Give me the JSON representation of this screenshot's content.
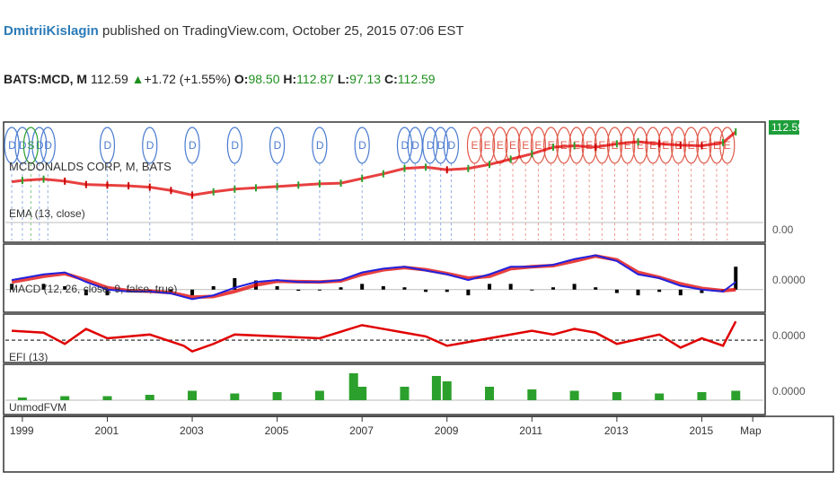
{
  "header": {
    "author": "DmitriiKislagin",
    "published": "published on TradingView.com, October 25, 2015 07:06 EST",
    "symbol": "BATS:MCD, M",
    "last": "112.59",
    "change": "+1.72 (+1.55%)",
    "o_label": "O:",
    "o_value": "98.50",
    "h_label": "H:",
    "h_value": "112.87",
    "l_label": "L:",
    "l_value": "97.13",
    "c_label": "C:",
    "c_value": "112.59",
    "up_color": "#1e8f1e"
  },
  "chart_data": [
    {
      "panel": "price",
      "type": "line",
      "title": "MCDONALDS CORP, M, BATS",
      "price_label": "112.59",
      "price_label_color": "#1e9e3a",
      "y_tick": "0.00",
      "x": [
        1998.75,
        1999.0,
        1999.5,
        2000.0,
        2000.5,
        2001.0,
        2001.5,
        2002.0,
        2002.5,
        2003.0,
        2003.5,
        2004.0,
        2004.5,
        2005.0,
        2005.5,
        2006.0,
        2006.5,
        2007.0,
        2007.5,
        2008.0,
        2008.5,
        2009.0,
        2009.5,
        2010.0,
        2010.5,
        2011.0,
        2011.5,
        2012.0,
        2012.5,
        2013.0,
        2013.5,
        2014.0,
        2014.5,
        2015.0,
        2015.5,
        2015.8
      ],
      "values": [
        38,
        40,
        42,
        39,
        34,
        33,
        32,
        30,
        25,
        18,
        23,
        27,
        29,
        31,
        33,
        35,
        36,
        43,
        50,
        58,
        60,
        56,
        58,
        64,
        72,
        80,
        90,
        92,
        90,
        95,
        98,
        95,
        93,
        92,
        97,
        113
      ],
      "ylim": [
        -50,
        125
      ],
      "series": [
        {
          "name": "EMA (13, close)",
          "color": "#e00000"
        }
      ],
      "events": {
        "dividend_marker": "D",
        "split_marker": "S",
        "earnings_marker": "E",
        "dividends_x": [
          1998.75,
          1999.0,
          1999.4,
          1999.6,
          2001.0,
          2002.0,
          2003.0,
          2004.0,
          2005.0,
          2006.0,
          2007.0,
          2008.0,
          2008.25,
          2008.6,
          2008.85,
          2009.1
        ],
        "splits_x": [
          1999.2
        ],
        "earnings_x": [
          2009.65,
          2009.95,
          2010.25,
          2010.55,
          2010.85,
          2011.15,
          2011.45,
          2011.75,
          2012.05,
          2012.35,
          2012.65,
          2012.95,
          2013.25,
          2013.55,
          2013.85,
          2014.15,
          2014.45,
          2014.75,
          2015.05,
          2015.35,
          2015.6
        ]
      }
    },
    {
      "panel": "macd",
      "type": "line",
      "title": "MACD (12, 26, close, 9, false, true)",
      "y_tick": "0.0000",
      "x": [
        1998.75,
        1999.5,
        2000.0,
        2000.5,
        2001.0,
        2001.5,
        2002.0,
        2002.5,
        2003.0,
        2003.5,
        2004.0,
        2004.5,
        2005.0,
        2005.5,
        2006.0,
        2006.5,
        2007.0,
        2007.5,
        2008.0,
        2008.5,
        2009.0,
        2009.5,
        2010.0,
        2010.5,
        2011.0,
        2011.5,
        2012.0,
        2012.5,
        2013.0,
        2013.5,
        2014.0,
        2014.5,
        2015.0,
        2015.5,
        2015.8
      ],
      "macd": [
        2.5,
        4.0,
        4.5,
        2.0,
        0.0,
        -0.5,
        -0.5,
        -1.0,
        -2.5,
        -1.5,
        0.5,
        2.0,
        2.5,
        2.0,
        2.0,
        2.5,
        4.5,
        5.5,
        6.0,
        5.0,
        4.0,
        2.5,
        4.0,
        6.0,
        6.0,
        6.5,
        8.0,
        9.0,
        7.5,
        4.0,
        3.0,
        1.0,
        0.0,
        -0.5,
        2.0
      ],
      "signal": [
        2.0,
        3.5,
        4.2,
        2.5,
        0.5,
        -0.3,
        -0.4,
        -0.8,
        -2.0,
        -1.8,
        -0.5,
        1.2,
        2.2,
        2.1,
        2.0,
        2.3,
        4.0,
        5.2,
        5.8,
        5.2,
        4.2,
        3.0,
        3.5,
        5.5,
        6.0,
        6.3,
        7.5,
        8.8,
        7.8,
        4.5,
        3.2,
        1.5,
        0.3,
        -0.3,
        0.0
      ],
      "ylim": [
        -5,
        11
      ],
      "colors": {
        "macd": "#2222dd",
        "signal": "#e00000",
        "hist": "#000000"
      }
    },
    {
      "panel": "efi",
      "type": "line",
      "title": "EFI (13)",
      "y_tick": "0.0000",
      "x": [
        1998.75,
        1999.5,
        2000.0,
        2000.5,
        2001.0,
        2002.0,
        2002.8,
        2003.0,
        2003.5,
        2004.0,
        2005.0,
        2006.0,
        2007.0,
        2007.5,
        2008.0,
        2008.5,
        2009.0,
        2010.0,
        2011.0,
        2011.5,
        2012.0,
        2012.5,
        2013.0,
        2014.0,
        2014.5,
        2015.0,
        2015.5,
        2015.8
      ],
      "values": [
        0.5,
        0.4,
        -0.2,
        0.6,
        0.1,
        0.3,
        -0.3,
        -0.6,
        -0.2,
        0.3,
        0.2,
        0.1,
        0.8,
        0.6,
        0.4,
        0.2,
        -0.3,
        0.1,
        0.5,
        0.3,
        0.6,
        0.4,
        -0.2,
        0.3,
        -0.4,
        0.1,
        -0.3,
        1.0
      ],
      "ylim": [
        -1,
        1.2
      ],
      "color": "#e00000"
    },
    {
      "panel": "volume",
      "type": "bar",
      "title": "UnmodFVM",
      "y_tick": "0.0000",
      "x": [
        1999,
        2000,
        2001,
        2002,
        2003,
        2004,
        2005,
        2006,
        2006.8,
        2007,
        2008,
        2008.75,
        2009,
        2010,
        2011,
        2012,
        2013,
        2014,
        2015,
        2015.8
      ],
      "values": [
        1.0,
        1.5,
        1.5,
        2.0,
        3.5,
        2.5,
        3.0,
        3.5,
        10.0,
        5.0,
        5.0,
        9.0,
        7.0,
        5.0,
        4.0,
        3.5,
        3.0,
        2.5,
        3.0,
        3.5
      ],
      "ylim": [
        0,
        12
      ],
      "color": "#2ca02c"
    }
  ],
  "x_axis": {
    "ticks": [
      {
        "label": "1999",
        "x": 1999
      },
      {
        "label": "2001",
        "x": 2001
      },
      {
        "label": "2003",
        "x": 2003
      },
      {
        "label": "2005",
        "x": 2005
      },
      {
        "label": "2007",
        "x": 2007
      },
      {
        "label": "2009",
        "x": 2009
      },
      {
        "label": "2011",
        "x": 2011
      },
      {
        "label": "2013",
        "x": 2013
      },
      {
        "label": "2015",
        "x": 2015
      },
      {
        "label": "Мар",
        "x": 2016.2
      }
    ],
    "xlim": [
      1998.6,
      2016.45
    ]
  }
}
